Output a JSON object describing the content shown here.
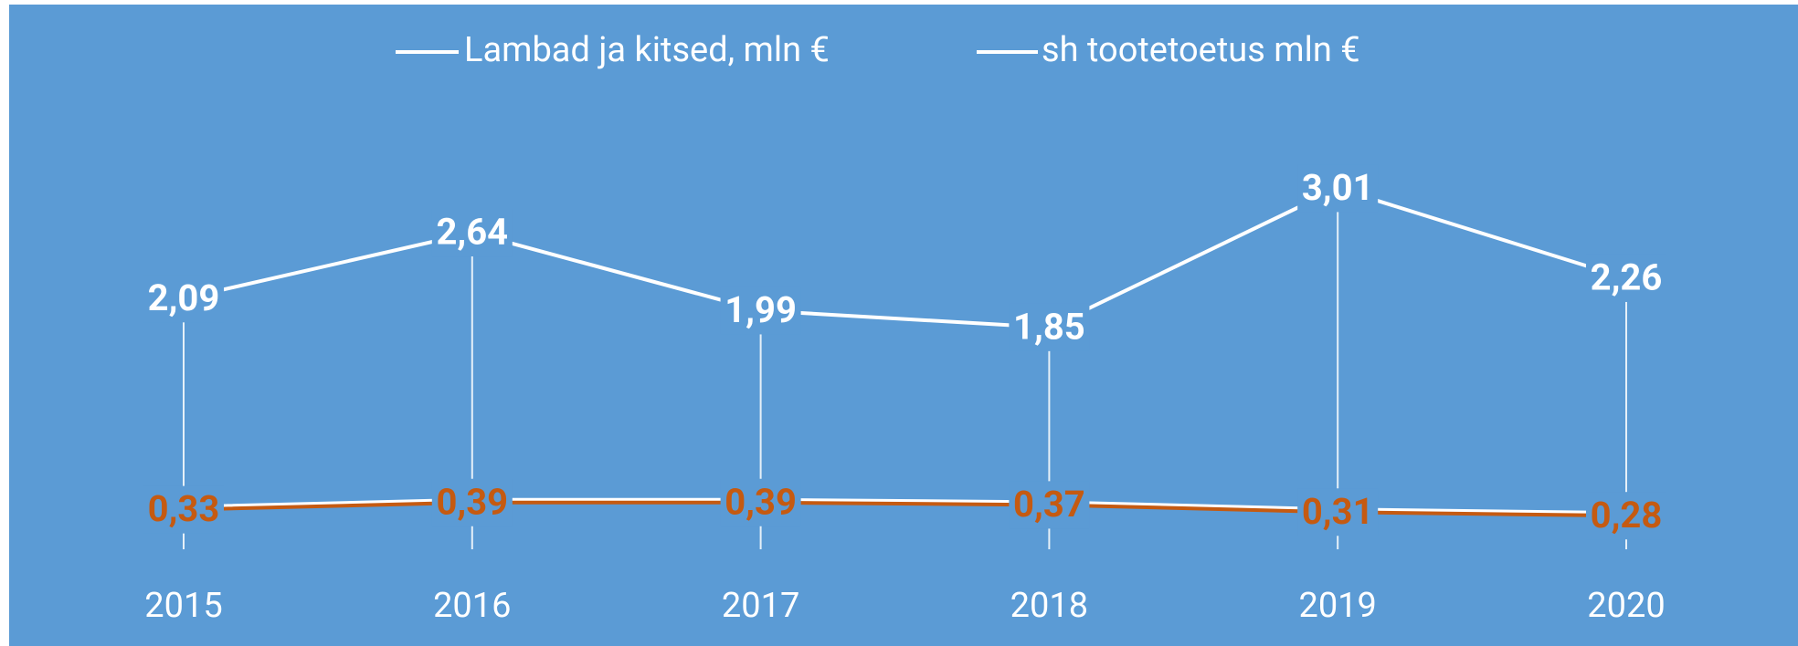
{
  "chart_data": {
    "type": "line",
    "categories": [
      "2015",
      "2016",
      "2017",
      "2018",
      "2019",
      "2020"
    ],
    "series": [
      {
        "name": "Lambad ja kitsed, mln €",
        "color": "#ffffff",
        "values": [
          2.09,
          2.64,
          1.99,
          1.85,
          3.01,
          2.26
        ],
        "value_labels": [
          "2,09",
          "2,64",
          "1,99",
          "1,85",
          "3,01",
          "2,26"
        ]
      },
      {
        "name": "sh tootetoetus mln €",
        "color": "#c55a11",
        "values": [
          0.33,
          0.39,
          0.39,
          0.37,
          0.31,
          0.28
        ],
        "value_labels": [
          "0,33",
          "0,39",
          "0,39",
          "0,37",
          "0,31",
          "0,28"
        ]
      }
    ],
    "ylim": [
      0,
      3.5
    ],
    "background": "#5b9bd5"
  }
}
